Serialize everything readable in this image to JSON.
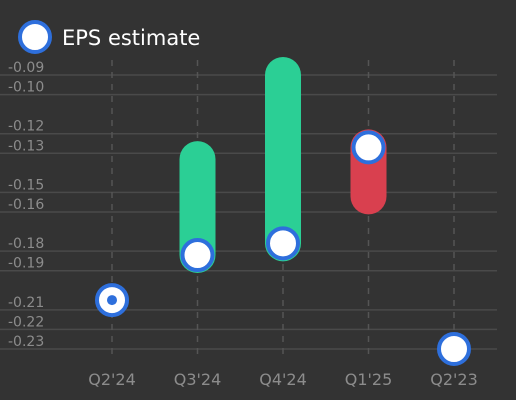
{
  "chart_data": {
    "type": "range-bar",
    "title": "",
    "xlabel": "",
    "ylabel": "",
    "legend": {
      "label": "EPS estimate",
      "position": "top-left"
    },
    "categories": [
      "Q2'24",
      "Q3'24",
      "Q4'24",
      "Q1'25",
      "Q2'23"
    ],
    "ylim": [
      -0.235,
      -0.085
    ],
    "yticks": [
      -0.09,
      -0.1,
      -0.12,
      -0.13,
      -0.15,
      -0.16,
      -0.18,
      -0.19,
      -0.21,
      -0.22,
      -0.23
    ],
    "ytick_labels": [
      "-0.09",
      "-0.10",
      "-0.12",
      "-0.13",
      "-0.15",
      "-0.16",
      "-0.18",
      "-0.19",
      "-0.21",
      "-0.22",
      "-0.23"
    ],
    "grid": {
      "horizontal": true,
      "vertical_dashed": true
    },
    "points": [
      {
        "category": "Q2'24",
        "estimate": -0.205,
        "actual": -0.205,
        "outcome": "met"
      },
      {
        "category": "Q3'24",
        "estimate": -0.182,
        "actual": -0.133,
        "outcome": "beat"
      },
      {
        "category": "Q4'24",
        "estimate": -0.176,
        "actual": -0.09,
        "outcome": "beat"
      },
      {
        "category": "Q1'25",
        "estimate": -0.127,
        "actual": -0.152,
        "outcome": "miss"
      },
      {
        "category": "Q2'23",
        "estimate": -0.23,
        "actual": null,
        "outcome": "pending"
      }
    ],
    "colors": {
      "beat": "#2bcf95",
      "miss": "#d9404f",
      "marker_stroke": "#2e6fdc",
      "marker_fill": "#ffffff",
      "grid": "#4a4a4a",
      "background": "#333333"
    }
  }
}
